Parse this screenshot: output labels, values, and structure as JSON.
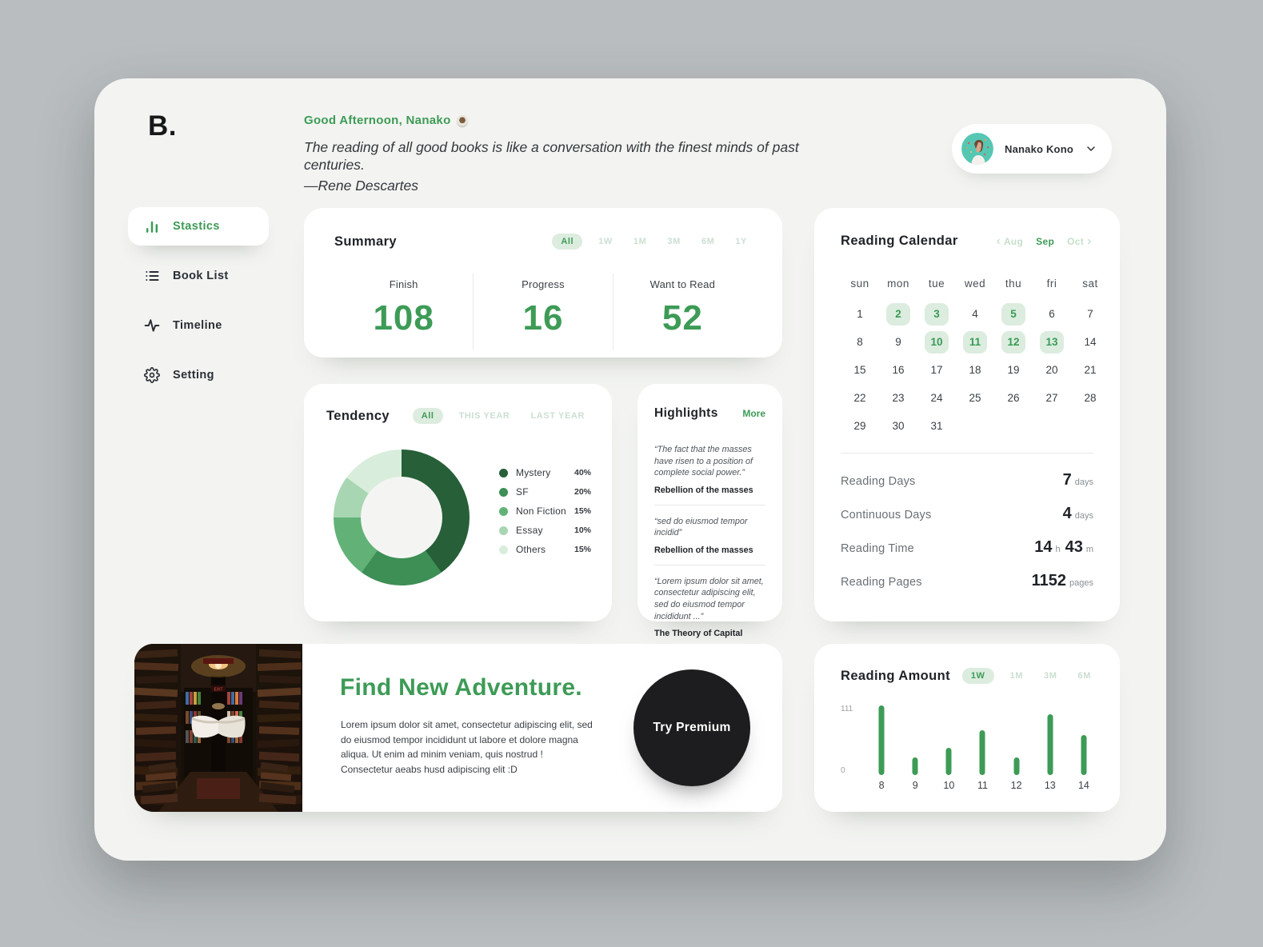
{
  "app": {
    "logo": "B."
  },
  "header": {
    "greeting": "Good Afternoon, Nanako",
    "greeting_emoji": "tea-cup",
    "quote": "The reading of all good books is like a conversation with the finest minds of past centuries.",
    "quote_author": "—Rene Descartes",
    "user": {
      "name": "Nanako Kono"
    }
  },
  "sidebar": {
    "items": [
      {
        "label": "Stastics",
        "icon": "bar-chart-icon",
        "active": true
      },
      {
        "label": "Book List",
        "icon": "list-icon",
        "active": false
      },
      {
        "label": "Timeline",
        "icon": "activity-icon",
        "active": false
      },
      {
        "label": "Setting",
        "icon": "gear-icon",
        "active": false
      }
    ]
  },
  "summary": {
    "title": "Summary",
    "filters": [
      "All",
      "1W",
      "1M",
      "3M",
      "6M",
      "1Y"
    ],
    "active_filter": "All",
    "stats": [
      {
        "label": "Finish",
        "value": "108"
      },
      {
        "label": "Progress",
        "value": "16"
      },
      {
        "label": "Want to Read",
        "value": "52"
      }
    ]
  },
  "tendency": {
    "title": "Tendency",
    "filters": [
      "All",
      "THIS YEAR",
      "LAST YEAR"
    ],
    "active_filter": "All",
    "chart_data": {
      "type": "pie",
      "style": "donut",
      "start_angle_deg": 0,
      "direction": "clockwise",
      "slices": [
        {
          "label": "Mystery",
          "pct": 40,
          "color": "#265f38"
        },
        {
          "label": "SF",
          "pct": 20,
          "color": "#3d8f55"
        },
        {
          "label": "Non Fiction",
          "pct": 15,
          "color": "#62b277"
        },
        {
          "label": "Essay",
          "pct": 10,
          "color": "#a8d6b2"
        },
        {
          "label": "Others",
          "pct": 15,
          "color": "#d9eddc"
        }
      ],
      "legend_position": "right"
    }
  },
  "highlights": {
    "title": "Highlights",
    "more_label": "More",
    "quotes": [
      {
        "text": "“The fact that the masses have risen to a position of complete social power.”",
        "book": "Rebellion of the masses"
      },
      {
        "text": "“sed do eiusmod tempor incidid”",
        "book": "Rebellion of the masses"
      },
      {
        "text": "“Lorem ipsum dolor sit amet, consectetur adipiscing elit, sed do eiusmod tempor incididunt ...”",
        "book": "The Theory of Capital"
      }
    ]
  },
  "calendar": {
    "title": "Reading Calendar",
    "prev_month": "Aug",
    "current_month": "Sep",
    "next_month": "Oct",
    "weekdays": [
      "sun",
      "mon",
      "tue",
      "wed",
      "thu",
      "fri",
      "sat"
    ],
    "start_offset": 0,
    "days_in_month": 31,
    "highlighted_days": [
      2,
      3,
      5,
      10,
      11,
      12,
      13
    ],
    "stats": [
      {
        "label": "Reading Days",
        "parts": [
          {
            "value": "7",
            "unit": "days"
          }
        ]
      },
      {
        "label": "Continuous Days",
        "parts": [
          {
            "value": "4",
            "unit": "days"
          }
        ]
      },
      {
        "label": "Reading Time",
        "parts": [
          {
            "value": "14",
            "unit": "h"
          },
          {
            "value": "43",
            "unit": "m"
          }
        ]
      },
      {
        "label": "Reading Pages",
        "parts": [
          {
            "value": "1152",
            "unit": "pages"
          }
        ]
      }
    ]
  },
  "adventure": {
    "title": "Find New Adventure.",
    "body": "Lorem ipsum dolor sit amet, consectetur adipiscing elit, sed do eiusmod tempor incididunt ut labore et dolore magna aliqua. Ut enim ad minim veniam, quis nostrud !",
    "body2": "Consectetur aeabs husd adipiscing elit :D",
    "button_label": "Try Premium",
    "image": "dark-bookstore-with-floating-open-book"
  },
  "reading_amount": {
    "title": "Reading Amount",
    "filters": [
      "1W",
      "1M",
      "3M",
      "6M"
    ],
    "active_filter": "1W",
    "chart_data": {
      "type": "bar",
      "categories": [
        "8",
        "9",
        "10",
        "11",
        "12",
        "13",
        "14"
      ],
      "values": [
        111,
        28,
        44,
        72,
        28,
        97,
        64
      ],
      "ylim": [
        0,
        111
      ],
      "yticks": [
        0,
        111
      ],
      "bar_color": "#3d9b56"
    }
  },
  "colors": {
    "accent_green": "#3d9b56",
    "pill_bg": "#dcecdf",
    "inactive_filter": "#ccdfd1",
    "panel_bg": "#f3f4f1",
    "outer_bg": "#b9bdc0",
    "card_bg": "#ffffff",
    "dark_button": "#1d1d1f"
  }
}
